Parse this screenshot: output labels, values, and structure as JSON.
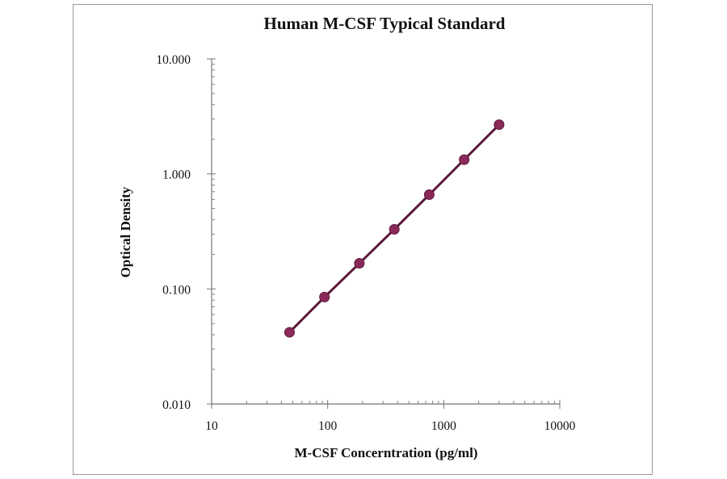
{
  "chart_data": {
    "type": "line",
    "title": "Human M-CSF Typical Standard",
    "xlabel": "M-CSF Concerntration (pg/ml)",
    "ylabel": "Optical Density",
    "x_scale": "log",
    "y_scale": "log",
    "xlim": [
      10,
      10000
    ],
    "ylim": [
      0.01,
      10
    ],
    "x_ticks": [
      "10",
      "100",
      "1000",
      "10000"
    ],
    "y_ticks": [
      "0.010",
      "0.100",
      "1.000",
      "10.000"
    ],
    "grid": false,
    "legend": "none",
    "series": [
      {
        "x": [
          46.9,
          93.8,
          187.5,
          375,
          750,
          1500,
          3000
        ],
        "y": [
          0.042,
          0.085,
          0.167,
          0.33,
          0.66,
          1.33,
          2.68
        ]
      }
    ],
    "colors": {
      "line": "#5a1838",
      "marker": "#8b2a5a",
      "axis": "#777777"
    }
  }
}
